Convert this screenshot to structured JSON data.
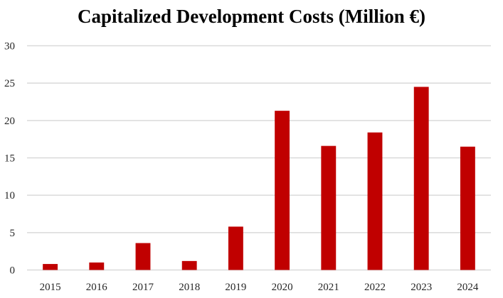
{
  "chart_data": {
    "type": "bar",
    "title": "Capitalized Development Costs (Million €)",
    "xlabel": "",
    "ylabel": "",
    "categories": [
      "2015",
      "2016",
      "2017",
      "2018",
      "2019",
      "2020",
      "2021",
      "2022",
      "2023",
      "2024"
    ],
    "values": [
      0.8,
      1.0,
      3.6,
      1.2,
      5.8,
      21.3,
      16.6,
      18.4,
      24.5,
      16.5
    ],
    "ylim": [
      0,
      30
    ],
    "yticks": [
      0,
      5,
      10,
      15,
      20,
      25,
      30
    ],
    "grid": true,
    "legend": "none",
    "colors": {
      "bar": "#C00000",
      "grid": "#D9D9D9",
      "text": "#262626"
    }
  }
}
